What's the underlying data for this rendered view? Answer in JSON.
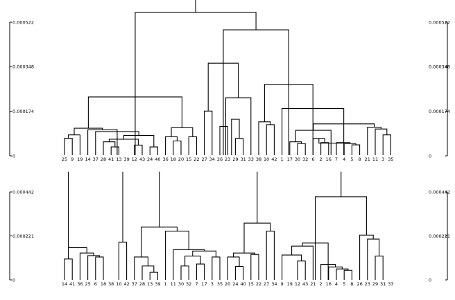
{
  "chart_data": [
    {
      "type": "dendrogram",
      "title": "",
      "y_ticks": [
        "0",
        "0.000174",
        "0.000348",
        "0.000522"
      ],
      "ylim": [
        0,
        0.000522
      ],
      "leaves": [
        "25",
        "9",
        "19",
        "14",
        "37",
        "28",
        "41",
        "13",
        "39",
        "12",
        "43",
        "24",
        "40",
        "36",
        "18",
        "20",
        "15",
        "22",
        "27",
        "34",
        "26",
        "23",
        "29",
        "31",
        "33",
        "38",
        "10",
        "42",
        "1",
        "17",
        "30",
        "32",
        "6",
        "2",
        "16",
        "7",
        "4",
        "5",
        "8",
        "21",
        "11",
        "3",
        "35"
      ],
      "links": [
        {
          "x0": 0,
          "x1": 1,
          "h": 6.85e-05
        },
        {
          "x0": 0.5,
          "x1": 2,
          "h": 8.2e-05
        },
        {
          "x0": 6,
          "x1": 7,
          "h": 3.5e-05
        },
        {
          "x0": 5,
          "x1": 6.5,
          "h": 5.5e-05
        },
        {
          "x0": 9,
          "x1": 10,
          "h": 4.2e-05
        },
        {
          "x0": 5.75,
          "x1": 9.5,
          "h": 6.5e-05
        },
        {
          "x0": 11,
          "x1": 12,
          "h": 3.5e-05
        },
        {
          "x0": 7.625,
          "x1": 11.5,
          "h": 8e-05
        },
        {
          "x0": 4,
          "x1": 9.5625,
          "h": 9.5e-05
        },
        {
          "x0": 3,
          "x1": 6.78,
          "h": 0.000102
        },
        {
          "x0": 1.25,
          "x1": 4.89,
          "h": 0.000108
        },
        {
          "x0": 14,
          "x1": 15,
          "h": 5.85e-05
        },
        {
          "x0": 13,
          "x1": 14.5,
          "h": 7.5e-05
        },
        {
          "x0": 16,
          "x1": 17,
          "h": 7.5e-05
        },
        {
          "x0": 13.75,
          "x1": 16.5,
          "h": 0.00011
        },
        {
          "x0": 3.07,
          "x1": 15.125,
          "h": 0.00023
        },
        {
          "x0": 20,
          "x1": 21,
          "h": 0.000115
        },
        {
          "x0": 22,
          "x1": 23,
          "h": 6.8e-05
        },
        {
          "x0": 21.5,
          "x1": 22.5,
          "h": 0.000143
        },
        {
          "x0": 20.75,
          "x1": 24,
          "h": 0.000227
        },
        {
          "x0": 18,
          "x1": 19,
          "h": 0.000175
        },
        {
          "x0": 18.5,
          "x1": 22.375,
          "h": 0.000362
        },
        {
          "x0": 26,
          "x1": 27,
          "h": 0.000122
        },
        {
          "x0": 25,
          "x1": 26.5,
          "h": 0.000133
        },
        {
          "x0": 30,
          "x1": 31,
          "h": 4.8e-05
        },
        {
          "x0": 29,
          "x1": 30.5,
          "h": 5.5e-05
        },
        {
          "x0": 33,
          "x1": 34,
          "h": 5.2e-05
        },
        {
          "x0": 32,
          "x1": 33.5,
          "h": 6.8e-05
        },
        {
          "x0": 37,
          "x1": 38,
          "h": 4.3e-05
        },
        {
          "x0": 36,
          "x1": 37.5,
          "h": 4.8e-05
        },
        {
          "x0": 35,
          "x1": 36.75,
          "h": 5.2e-05
        },
        {
          "x0": 32.75,
          "x1": 35.875,
          "h": 5e-05
        },
        {
          "x0": 29.75,
          "x1": 34.31,
          "h": 0.0001
        },
        {
          "x0": 41,
          "x1": 42,
          "h": 8.2e-05
        },
        {
          "x0": 40,
          "x1": 41.5,
          "h": 0.000105
        },
        {
          "x0": 39,
          "x1": 40.75,
          "h": 0.000112
        },
        {
          "x0": 32.03,
          "x1": 39.875,
          "h": 0.000125
        },
        {
          "x0": 28,
          "x1": 35.95,
          "h": 0.000185
        },
        {
          "x0": 25.75,
          "x1": 31.98,
          "h": 0.000279
        },
        {
          "x0": 20.44,
          "x1": 28.86,
          "h": 0.000492
        },
        {
          "x0": 9.1,
          "x1": 24.65,
          "h": 0.00056
        }
      ],
      "root_height": 0.00062
    },
    {
      "type": "dendrogram",
      "title": "",
      "y_ticks": [
        "0",
        "0.000221",
        "0.000442"
      ],
      "ylim": [
        0,
        0.000442
      ],
      "leaves": [
        "14",
        "41",
        "36",
        "25",
        "6",
        "18",
        "38",
        "10",
        "42",
        "37",
        "28",
        "13",
        "39",
        "1",
        "11",
        "30",
        "32",
        "7",
        "17",
        "3",
        "35",
        "20",
        "24",
        "40",
        "15",
        "22",
        "27",
        "34",
        "9",
        "19",
        "12",
        "43",
        "21",
        "2",
        "16",
        "4",
        "5",
        "8",
        "26",
        "23",
        "29",
        "31",
        "33"
      ],
      "links": [
        {
          "x0": 4,
          "x1": 5,
          "h": 0.000115
        },
        {
          "x0": 3,
          "x1": 4.5,
          "h": 0.000122
        },
        {
          "x0": 2,
          "x1": 3.75,
          "h": 0.000135
        },
        {
          "x0": 0,
          "x1": 1,
          "h": 0.000105
        },
        {
          "x0": 0.5,
          "x1": 2.875,
          "h": 0.000162
        },
        {
          "x0": 7,
          "x1": 8,
          "h": 0.00019
        },
        {
          "x0": 11,
          "x1": 12,
          "h": 3.8e-05
        },
        {
          "x0": 10,
          "x1": 11.5,
          "h": 7e-05
        },
        {
          "x0": 9,
          "x1": 10.75,
          "h": 0.000115
        },
        {
          "x0": 15,
          "x1": 16,
          "h": 7e-05
        },
        {
          "x0": 17,
          "x1": 18,
          "h": 8e-05
        },
        {
          "x0": 19,
          "x1": 20,
          "h": 0.000115
        },
        {
          "x0": 15.5,
          "x1": 17.5,
          "h": 0.00012
        },
        {
          "x0": 16.5,
          "x1": 19.5,
          "h": 0.000145
        },
        {
          "x0": 14,
          "x1": 18,
          "h": 0.000152
        },
        {
          "x0": 13,
          "x1": 16,
          "h": 0.000245
        },
        {
          "x0": 9.875,
          "x1": 14.5,
          "h": 0.000265
        },
        {
          "x0": 22,
          "x1": 23,
          "h": 6.8e-05
        },
        {
          "x0": 21,
          "x1": 22.5,
          "h": 0.000115
        },
        {
          "x0": 24,
          "x1": 25,
          "h": 0.000128
        },
        {
          "x0": 21.75,
          "x1": 24.5,
          "h": 0.000135
        },
        {
          "x0": 26,
          "x1": 27,
          "h": 0.000245
        },
        {
          "x0": 23.125,
          "x1": 26.5,
          "h": 0.000285
        },
        {
          "x0": 30,
          "x1": 31,
          "h": 9.5e-05
        },
        {
          "x0": 28,
          "x1": 30.5,
          "h": 0.000125
        },
        {
          "x0": 32,
          "x1": 29.25,
          "h": 0.00017
        },
        {
          "x0": 36,
          "x1": 37,
          "h": 4.8e-05
        },
        {
          "x0": 35,
          "x1": 36.5,
          "h": 5.5e-05
        },
        {
          "x0": 34,
          "x1": 35.75,
          "h": 6.5e-05
        },
        {
          "x0": 33,
          "x1": 34.875,
          "h": 7.8e-05
        },
        {
          "x0": 30.625,
          "x1": 33.94,
          "h": 0.000185
        },
        {
          "x0": 40,
          "x1": 41,
          "h": 0.00012
        },
        {
          "x0": 39,
          "x1": 40.5,
          "h": 0.000205
        },
        {
          "x0": 38,
          "x1": 39.75,
          "h": 0.000225
        },
        {
          "x0": 32.28,
          "x1": 38.875,
          "h": 0.000418
        }
      ],
      "stubs": [
        {
          "x": 0.5,
          "h": 0.000162,
          "top": 0.000495
        },
        {
          "x": 7.5,
          "h": 0.00019,
          "top": 0.000495
        },
        {
          "x": 12.2,
          "h": 0.000265,
          "top": 0.000495
        },
        {
          "x": 24.8,
          "h": 0.000285,
          "top": 0.000495
        },
        {
          "x": 35.6,
          "h": 0.000418,
          "top": 0.000495
        }
      ]
    }
  ]
}
